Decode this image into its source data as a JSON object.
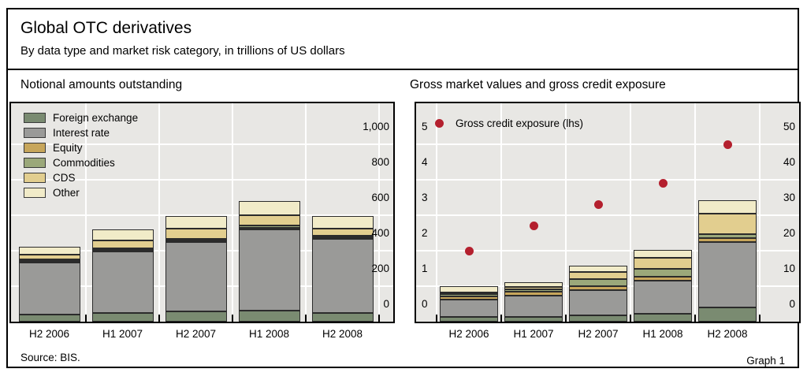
{
  "header": {
    "title": "Global OTC derivatives",
    "subtitle": "By data type and market risk category, in trillions of US dollars"
  },
  "footer": {
    "source": "Source: BIS.",
    "graph_label": "Graph 1"
  },
  "colors": {
    "foreign_exchange": "#7a8b71",
    "interest_rate": "#9a9a98",
    "equity": "#c7a65b",
    "commodities": "#9ba87a",
    "cds": "#e2ce8f",
    "other": "#f1ebc8",
    "dot_red": "#b4202e",
    "plot_bg": "#e8e7e4",
    "grid": "#ffffff",
    "segment_outline": "#2b2b2b"
  },
  "chart_data": [
    {
      "type": "bar",
      "stacked": true,
      "title": "Notional amounts outstanding",
      "categories": [
        "H2 2006",
        "H1 2007",
        "H2 2007",
        "H1 2008",
        "H2 2008"
      ],
      "series": [
        {
          "name": "Foreign exchange",
          "color": "foreign_exchange",
          "values": [
            40.3,
            48.6,
            56.2,
            63.0,
            49.8
          ]
        },
        {
          "name": "Interest rate",
          "color": "interest_rate",
          "values": [
            291.6,
            347.3,
            393.1,
            458.3,
            418.7
          ]
        },
        {
          "name": "Equity",
          "color": "equity",
          "values": [
            7.5,
            8.6,
            8.5,
            10.2,
            6.5
          ]
        },
        {
          "name": "Commodities",
          "color": "commodities",
          "values": [
            7.1,
            7.6,
            8.5,
            13.2,
            4.4
          ]
        },
        {
          "name": "CDS",
          "color": "cds",
          "values": [
            28.7,
            42.6,
            58.2,
            57.3,
            41.9
          ]
        },
        {
          "name": "Other",
          "color": "other",
          "values": [
            43.0,
            61.5,
            71.2,
            81.7,
            70.7
          ]
        }
      ],
      "totals": [
        418.2,
        516.2,
        595.7,
        683.7,
        592.0
      ],
      "y_axis_right": {
        "labels": [
          "0",
          "200",
          "400",
          "600",
          "800",
          "1,000"
        ],
        "step": 200,
        "ylim": [
          0,
          1100
        ]
      },
      "grid": true,
      "legend_position": "top-left"
    },
    {
      "type": "bar+scatter",
      "stacked": true,
      "title": "Gross market values and gross credit exposure",
      "categories": [
        "H2 2006",
        "H1 2007",
        "H2 2007",
        "H1 2008",
        "H2 2008"
      ],
      "series": [
        {
          "name": "Foreign exchange",
          "color": "foreign_exchange",
          "values": [
            1.3,
            1.3,
            1.8,
            2.3,
            3.9
          ]
        },
        {
          "name": "Interest rate",
          "color": "interest_rate",
          "values": [
            4.8,
            6.1,
            7.2,
            9.3,
            18.4
          ]
        },
        {
          "name": "Equity",
          "color": "equity",
          "values": [
            0.9,
            1.1,
            1.1,
            1.1,
            1.1
          ]
        },
        {
          "name": "Commodities",
          "color": "commodities",
          "values": [
            0.7,
            0.6,
            1.9,
            2.2,
            1.0
          ]
        },
        {
          "name": "CDS",
          "color": "cds",
          "values": [
            0.5,
            0.7,
            2.0,
            3.2,
            5.7
          ]
        },
        {
          "name": "Other",
          "color": "other",
          "values": [
            1.7,
            1.3,
            1.8,
            2.3,
            3.8
          ]
        }
      ],
      "totals": [
        9.9,
        11.1,
        15.8,
        20.4,
        33.9
      ],
      "dots": {
        "name": "Gross credit exposure (lhs)",
        "color": "dot_red",
        "axis": "left",
        "values": [
          2.0,
          2.7,
          3.3,
          3.9,
          5.0
        ]
      },
      "y_axis_left": {
        "labels": [
          "0",
          "1",
          "2",
          "3",
          "4",
          "5"
        ],
        "step": 1,
        "ylim": [
          0,
          5.5
        ]
      },
      "y_axis_right": {
        "labels": [
          "0",
          "10",
          "20",
          "30",
          "40",
          "50"
        ],
        "step": 10,
        "ylim": [
          0,
          55
        ]
      },
      "grid": true,
      "legend_position": "top-left"
    }
  ]
}
